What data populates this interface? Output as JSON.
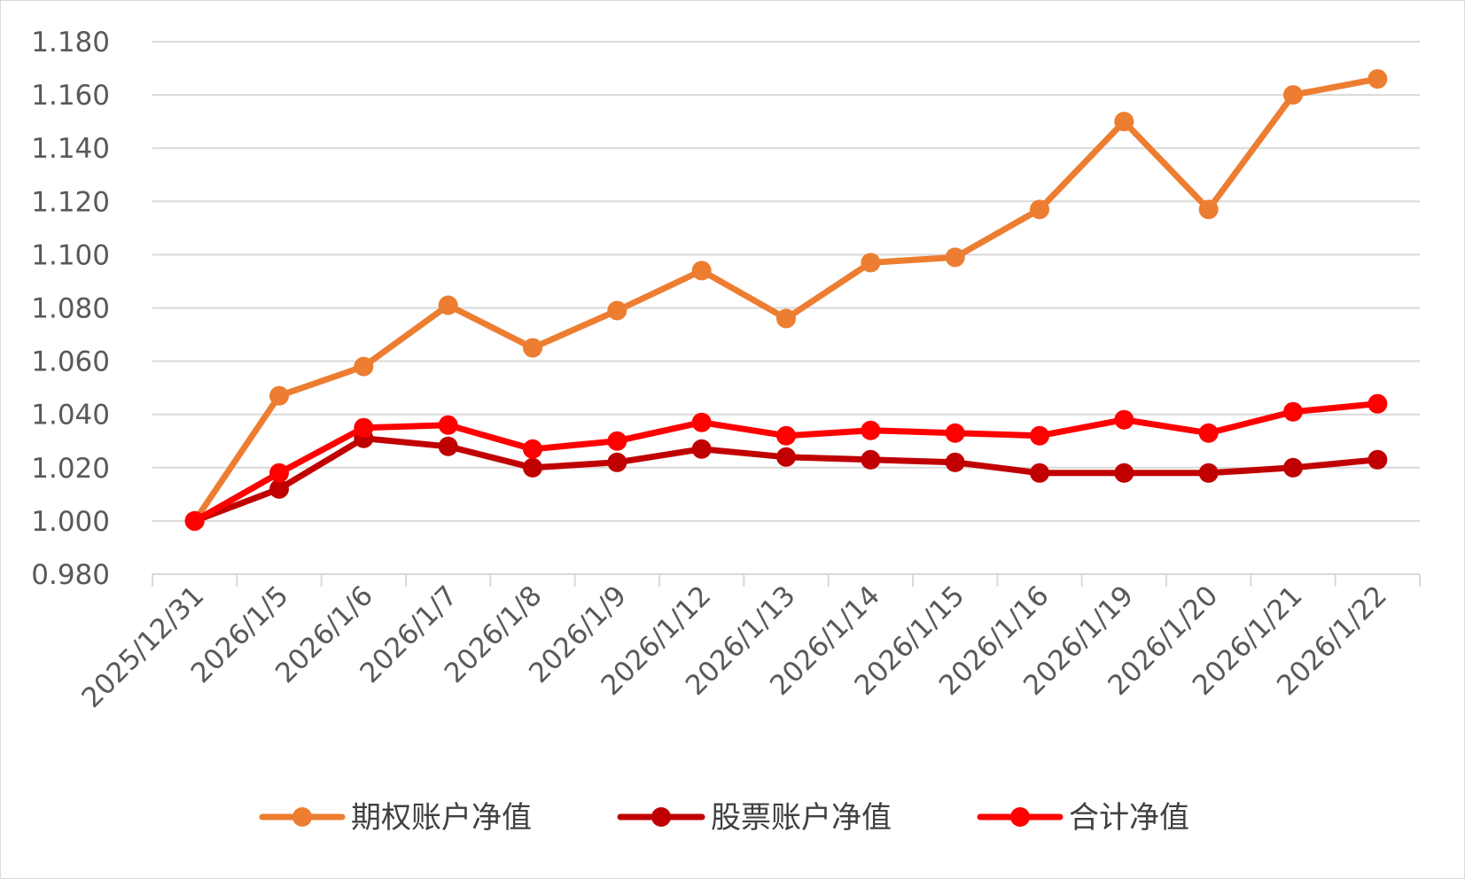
{
  "chart_data": {
    "type": "line",
    "title": "",
    "xlabel": "",
    "ylabel": "",
    "categories": [
      "2025/12/31",
      "2026/1/5",
      "2026/1/6",
      "2026/1/7",
      "2026/1/8",
      "2026/1/9",
      "2026/1/12",
      "2026/1/13",
      "2026/1/14",
      "2026/1/15",
      "2026/1/16",
      "2026/1/19",
      "2026/1/20",
      "2026/1/21",
      "2026/1/22"
    ],
    "ylim": [
      0.98,
      1.18
    ],
    "yticks": [
      0.98,
      1.0,
      1.02,
      1.04,
      1.06,
      1.08,
      1.1,
      1.12,
      1.14,
      1.16,
      1.18
    ],
    "ytick_labels": [
      "0.980",
      "1.000",
      "1.020",
      "1.040",
      "1.060",
      "1.080",
      "1.100",
      "1.120",
      "1.140",
      "1.160",
      "1.180"
    ],
    "grid": true,
    "legend_position": "bottom",
    "series": [
      {
        "name": "期权账户净值",
        "color": "#ED7D31",
        "values": [
          1.0,
          1.047,
          1.058,
          1.081,
          1.065,
          1.079,
          1.094,
          1.076,
          1.097,
          1.099,
          1.117,
          1.15,
          1.117,
          1.16,
          1.166
        ]
      },
      {
        "name": "股票账户净值",
        "color": "#C00000",
        "values": [
          1.0,
          1.012,
          1.031,
          1.028,
          1.02,
          1.022,
          1.027,
          1.024,
          1.023,
          1.022,
          1.018,
          1.018,
          1.018,
          1.02,
          1.023
        ]
      },
      {
        "name": "合计净值",
        "color": "#FF0000",
        "values": [
          1.0,
          1.018,
          1.035,
          1.036,
          1.027,
          1.03,
          1.037,
          1.032,
          1.034,
          1.033,
          1.032,
          1.038,
          1.033,
          1.041,
          1.044
        ]
      }
    ]
  }
}
